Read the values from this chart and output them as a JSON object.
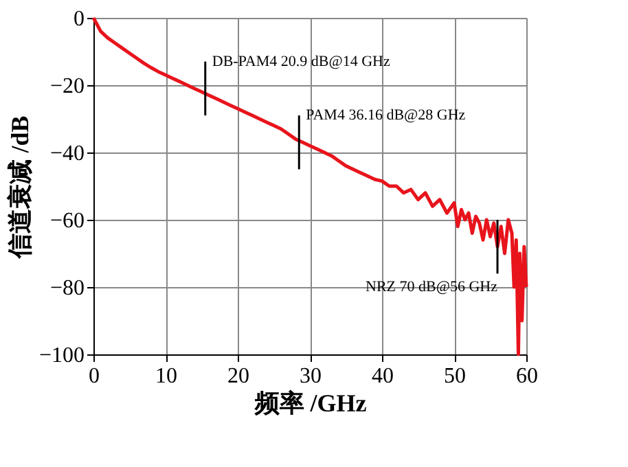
{
  "chart_data": {
    "type": "line",
    "xlabel": "频率 /GHz",
    "ylabel": "信道衰减 /dB",
    "x": [
      0,
      0.5,
      1,
      2,
      3,
      4,
      5,
      6,
      7,
      8,
      9,
      10,
      11,
      12,
      13,
      14,
      15,
      16,
      17,
      18,
      19,
      20,
      21,
      22,
      23,
      24,
      25,
      26,
      27,
      28,
      29,
      30,
      31,
      32,
      33,
      34,
      35,
      36,
      37,
      38,
      39,
      40,
      41,
      42,
      43,
      44,
      45,
      46,
      47,
      48,
      49,
      50,
      50.5,
      51,
      51.5,
      52,
      52.5,
      53,
      53.5,
      54,
      54.5,
      55,
      55.5,
      56,
      56.5,
      57,
      57.5,
      58,
      58.3,
      58.6,
      58.9,
      59.1,
      59.4,
      59.7,
      60
    ],
    "series": [
      {
        "color": "#e8141c",
        "values": [
          0,
          -2,
          -4,
          -6,
          -7.5,
          -9,
          -10.5,
          -12,
          -13.5,
          -14.8,
          -16,
          -17,
          -18,
          -19,
          -20,
          -21,
          -22,
          -23,
          -24,
          -25,
          -26,
          -27,
          -28,
          -29,
          -30,
          -31,
          -32,
          -33,
          -34.5,
          -36,
          -37,
          -38,
          -39,
          -40,
          -41,
          -42.5,
          -44,
          -45,
          -46,
          -47,
          -48,
          -48.5,
          -50,
          -50,
          -52,
          -51,
          -54,
          -52,
          -56,
          -54,
          -58,
          -55,
          -62,
          -57,
          -60,
          -58,
          -64,
          -59,
          -61,
          -66,
          -60,
          -65,
          -61,
          -68,
          -62,
          -70,
          -60,
          -64,
          -80,
          -66,
          -100,
          -70,
          -90,
          -68,
          -80
        ]
      }
    ],
    "xlim": [
      0,
      60
    ],
    "xticks": [
      0,
      10,
      20,
      30,
      40,
      50,
      60
    ],
    "ylim": [
      -100,
      0
    ],
    "yticks": [
      -100,
      -80,
      -60,
      -40,
      -20,
      0
    ],
    "grid": true,
    "annotations": [
      {
        "text": "DB-PAM4 20.9 dB@14 GHz",
        "x": 15.5,
        "y": -21
      },
      {
        "text": "PAM4 36.16 dB@28 GHz",
        "x": 28.5,
        "y": -37
      },
      {
        "text": "NRZ 70 dB@56 GHz",
        "x": 56,
        "y": -68
      }
    ]
  }
}
